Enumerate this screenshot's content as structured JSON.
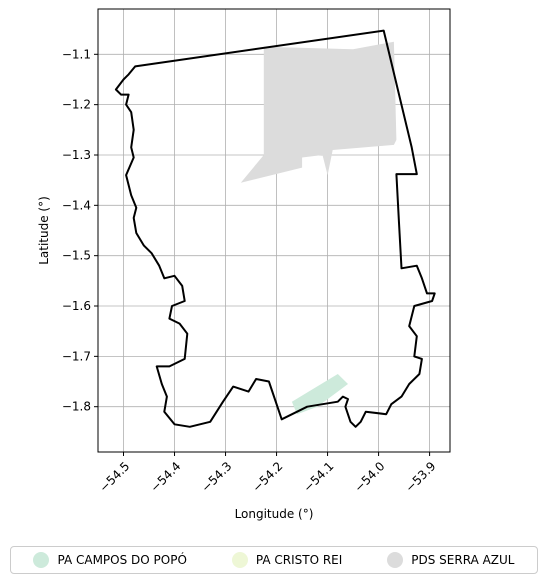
{
  "chart_data": {
    "type": "map",
    "xlabel": "Longitude (°)",
    "ylabel": "Latitude (°)",
    "xlim": [
      -54.55,
      -53.86
    ],
    "ylim": [
      -1.89,
      -1.01
    ],
    "grid": true,
    "xticks": [
      {
        "value": -54.5,
        "label": "−54.5"
      },
      {
        "value": -54.4,
        "label": "−54.4"
      },
      {
        "value": -54.3,
        "label": "−54.3"
      },
      {
        "value": -54.2,
        "label": "−54.2"
      },
      {
        "value": -54.1,
        "label": "−54.1"
      },
      {
        "value": -54.0,
        "label": "−54.0"
      },
      {
        "value": -53.9,
        "label": "−53.9"
      }
    ],
    "yticks": [
      {
        "value": -1.1,
        "label": "−1.1"
      },
      {
        "value": -1.2,
        "label": "−1.2"
      },
      {
        "value": -1.3,
        "label": "−1.3"
      },
      {
        "value": -1.4,
        "label": "−1.4"
      },
      {
        "value": -1.5,
        "label": "−1.5"
      },
      {
        "value": -1.6,
        "label": "−1.6"
      },
      {
        "value": -1.7,
        "label": "−1.7"
      },
      {
        "value": -1.8,
        "label": "−1.8"
      }
    ],
    "legend_position": "bottom",
    "series": [
      {
        "name": "PA CAMPOS DO POPÓ",
        "color": "#cdeadb",
        "polygon": [
          [
            -54.17,
            -1.79
          ],
          [
            -54.08,
            -1.735
          ],
          [
            -54.06,
            -1.755
          ],
          [
            -54.12,
            -1.8
          ],
          [
            -54.16,
            -1.815
          ]
        ]
      },
      {
        "name": "PA CRISTO REI",
        "color": "#eef7d6",
        "polygon": []
      },
      {
        "name": "PDS SERRA AZUL",
        "color": "#dcdcdc",
        "polygon": [
          [
            -54.225,
            -1.085
          ],
          [
            -54.05,
            -1.09
          ],
          [
            -53.97,
            -1.075
          ],
          [
            -53.965,
            -1.27
          ],
          [
            -53.97,
            -1.28
          ],
          [
            -54.09,
            -1.29
          ],
          [
            -54.1,
            -1.34
          ],
          [
            -54.11,
            -1.3
          ],
          [
            -54.15,
            -1.305
          ],
          [
            -54.15,
            -1.325
          ],
          [
            -54.27,
            -1.355
          ],
          [
            -54.225,
            -1.3
          ]
        ]
      }
    ],
    "boundary": [
      [
        -54.477,
        -1.124
      ],
      [
        -53.99,
        -1.053
      ],
      [
        -53.935,
        -1.285
      ],
      [
        -53.925,
        -1.338
      ],
      [
        -53.965,
        -1.338
      ],
      [
        -53.96,
        -1.435
      ],
      [
        -53.955,
        -1.525
      ],
      [
        -53.925,
        -1.52
      ],
      [
        -53.915,
        -1.545
      ],
      [
        -53.905,
        -1.575
      ],
      [
        -53.89,
        -1.575
      ],
      [
        -53.895,
        -1.59
      ],
      [
        -53.93,
        -1.6
      ],
      [
        -53.94,
        -1.64
      ],
      [
        -53.925,
        -1.66
      ],
      [
        -53.93,
        -1.7
      ],
      [
        -53.915,
        -1.705
      ],
      [
        -53.92,
        -1.735
      ],
      [
        -53.94,
        -1.755
      ],
      [
        -53.955,
        -1.78
      ],
      [
        -53.975,
        -1.795
      ],
      [
        -53.985,
        -1.815
      ],
      [
        -54.025,
        -1.81
      ],
      [
        -54.035,
        -1.83
      ],
      [
        -54.045,
        -1.84
      ],
      [
        -54.055,
        -1.83
      ],
      [
        -54.065,
        -1.8
      ],
      [
        -54.06,
        -1.785
      ],
      [
        -54.07,
        -1.78
      ],
      [
        -54.08,
        -1.79
      ],
      [
        -54.14,
        -1.8
      ],
      [
        -54.19,
        -1.825
      ],
      [
        -54.215,
        -1.75
      ],
      [
        -54.24,
        -1.745
      ],
      [
        -54.255,
        -1.77
      ],
      [
        -54.285,
        -1.76
      ],
      [
        -54.305,
        -1.79
      ],
      [
        -54.33,
        -1.83
      ],
      [
        -54.37,
        -1.84
      ],
      [
        -54.4,
        -1.835
      ],
      [
        -54.42,
        -1.81
      ],
      [
        -54.415,
        -1.78
      ],
      [
        -54.425,
        -1.755
      ],
      [
        -54.435,
        -1.72
      ],
      [
        -54.41,
        -1.72
      ],
      [
        -54.38,
        -1.705
      ],
      [
        -54.375,
        -1.655
      ],
      [
        -54.39,
        -1.635
      ],
      [
        -54.41,
        -1.625
      ],
      [
        -54.405,
        -1.6
      ],
      [
        -54.38,
        -1.59
      ],
      [
        -54.385,
        -1.56
      ],
      [
        -54.4,
        -1.54
      ],
      [
        -54.42,
        -1.545
      ],
      [
        -54.43,
        -1.52
      ],
      [
        -54.445,
        -1.495
      ],
      [
        -54.46,
        -1.48
      ],
      [
        -54.475,
        -1.455
      ],
      [
        -54.48,
        -1.425
      ],
      [
        -54.475,
        -1.405
      ],
      [
        -54.485,
        -1.38
      ],
      [
        -54.495,
        -1.34
      ],
      [
        -54.48,
        -1.305
      ],
      [
        -54.485,
        -1.285
      ],
      [
        -54.48,
        -1.25
      ],
      [
        -54.485,
        -1.215
      ],
      [
        -54.495,
        -1.2
      ],
      [
        -54.49,
        -1.18
      ],
      [
        -54.505,
        -1.18
      ],
      [
        -54.515,
        -1.17
      ],
      [
        -54.5,
        -1.15
      ],
      [
        -54.49,
        -1.14
      ],
      [
        -54.477,
        -1.124
      ]
    ]
  }
}
